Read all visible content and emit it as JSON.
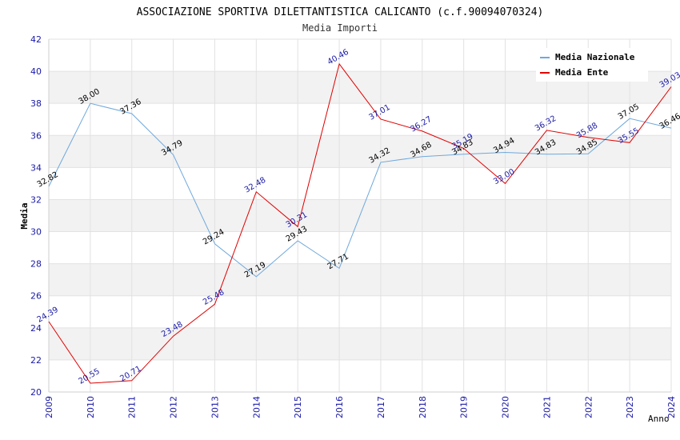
{
  "chart_data": {
    "type": "line",
    "title": "ASSOCIAZIONE SPORTIVA DILETTANTISTICA CALICANTO (c.f.90094070324)",
    "subtitle": "Media Importi",
    "xlabel": "Anno",
    "ylabel": "Media",
    "ylim": [
      20,
      42
    ],
    "yticks": [
      20,
      22,
      24,
      26,
      28,
      30,
      32,
      34,
      36,
      38,
      40,
      42
    ],
    "grid": true,
    "legend_position": "top-right",
    "categories": [
      "2009",
      "2010",
      "2011",
      "2012",
      "2013",
      "2014",
      "2015",
      "2016",
      "2017",
      "2018",
      "2019",
      "2020",
      "2021",
      "2022",
      "2023",
      "2024"
    ],
    "series": [
      {
        "name": "Media Nazionale",
        "color": "#6fa8dc",
        "label_color": "#000000",
        "values": [
          32.82,
          38.0,
          37.36,
          34.79,
          29.24,
          27.19,
          29.43,
          27.71,
          34.32,
          34.68,
          34.83,
          34.94,
          34.83,
          34.85,
          37.05,
          36.46
        ],
        "labels": [
          "32.82",
          "38.00",
          "37.36",
          "34.79",
          "29.24",
          "27.19",
          "29.43",
          "27.71",
          "34.32",
          "34.68",
          "34.83",
          "34.94",
          "34.83",
          "34.85",
          "37.05",
          "36.46"
        ]
      },
      {
        "name": "Media Ente",
        "color": "#e00000",
        "label_color": "#1a1aa8",
        "values": [
          24.39,
          20.55,
          20.71,
          23.48,
          25.48,
          32.48,
          30.31,
          40.46,
          37.01,
          36.27,
          35.19,
          33.0,
          36.32,
          35.88,
          35.55,
          39.03
        ],
        "labels": [
          "24.39",
          "20.55",
          "20.71",
          "23.48",
          "25.48",
          "32.48",
          "30.31",
          "40.46",
          "37.01",
          "36.27",
          "35.19",
          "33.00",
          "36.32",
          "35.88",
          "35.55",
          "39.03"
        ]
      }
    ]
  }
}
